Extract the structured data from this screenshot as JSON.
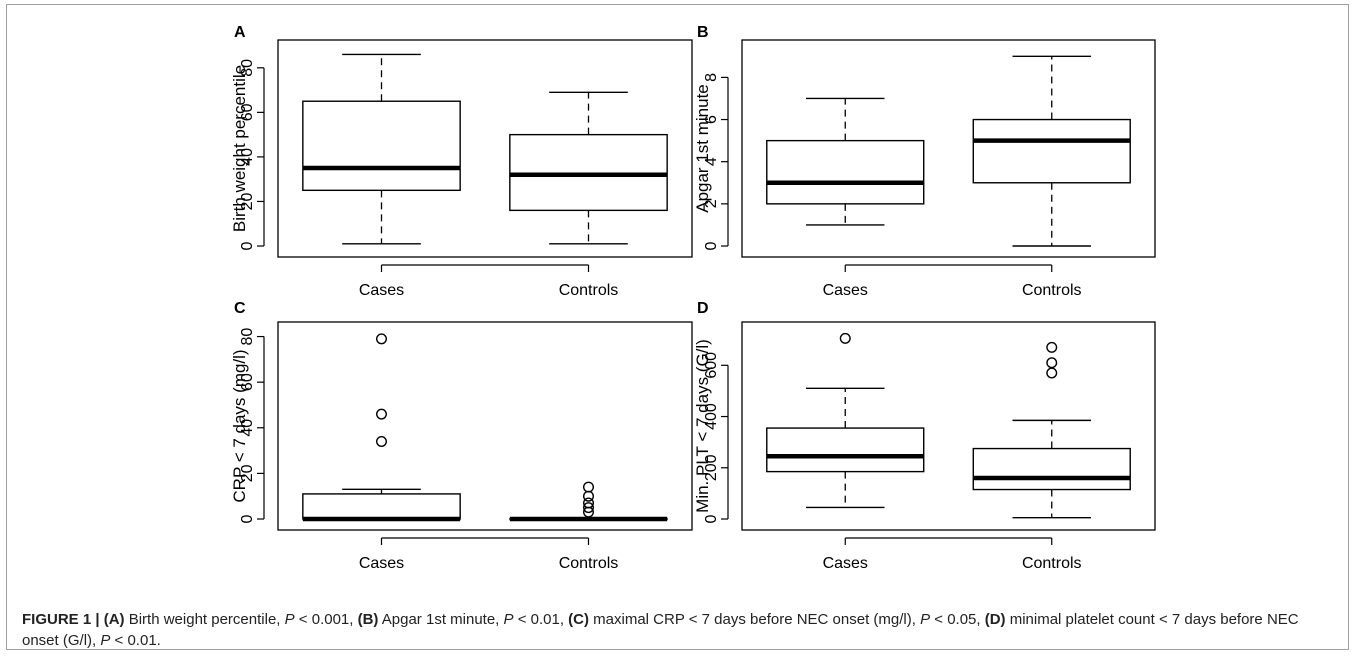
{
  "chart_data": [
    {
      "panel": "A",
      "type": "box",
      "ylabel": "Birth weight percentile",
      "categories": [
        "Cases",
        "Controls"
      ],
      "ylim": [
        0,
        88
      ],
      "yticks": [
        0,
        20,
        40,
        60,
        80
      ],
      "boxes": [
        {
          "name": "Cases",
          "whisker_low": 1,
          "q1": 25,
          "median": 35,
          "q3": 65,
          "whisker_high": 86,
          "outliers": []
        },
        {
          "name": "Controls",
          "whisker_low": 1,
          "q1": 16,
          "median": 32,
          "q3": 50,
          "whisker_high": 69,
          "outliers": []
        }
      ]
    },
    {
      "panel": "B",
      "type": "box",
      "ylabel": "Apgar 1st minute",
      "categories": [
        "Cases",
        "Controls"
      ],
      "ylim": [
        0,
        9.3
      ],
      "yticks": [
        0,
        2,
        4,
        6,
        8
      ],
      "boxes": [
        {
          "name": "Cases",
          "whisker_low": 1,
          "q1": 2,
          "median": 3,
          "q3": 5,
          "whisker_high": 7,
          "outliers": []
        },
        {
          "name": "Controls",
          "whisker_low": 0,
          "q1": 3,
          "median": 5,
          "q3": 6,
          "whisker_high": 9,
          "outliers": []
        }
      ]
    },
    {
      "panel": "C",
      "type": "box",
      "ylabel": "CRP < 7 days (mg/l)",
      "categories": [
        "Cases",
        "Controls"
      ],
      "ylim": [
        0,
        82
      ],
      "yticks": [
        0,
        20,
        40,
        60,
        80
      ],
      "boxes": [
        {
          "name": "Cases",
          "whisker_low": 0,
          "q1": 0,
          "median": 0,
          "q3": 11,
          "whisker_high": 13,
          "outliers": [
            34,
            46,
            79
          ]
        },
        {
          "name": "Controls",
          "whisker_low": 0,
          "q1": 0,
          "median": 0,
          "q3": 0,
          "whisker_high": 0,
          "outliers": [
            3,
            5,
            7,
            10,
            14
          ]
        }
      ]
    },
    {
      "panel": "D",
      "type": "box",
      "ylabel": "Min. PLT < 7 days (G/l)",
      "categories": [
        "Cases",
        "Controls"
      ],
      "ylim": [
        0,
        730
      ],
      "yticks": [
        0,
        200,
        400,
        600
      ],
      "boxes": [
        {
          "name": "Cases",
          "whisker_low": 45,
          "q1": 185,
          "median": 245,
          "q3": 355,
          "whisker_high": 510,
          "outliers": [
            705
          ]
        },
        {
          "name": "Controls",
          "whisker_low": 5,
          "q1": 115,
          "median": 160,
          "q3": 275,
          "whisker_high": 385,
          "outliers": [
            570,
            610,
            670
          ]
        }
      ]
    }
  ],
  "caption": {
    "parts": [
      {
        "text": "FIGURE 1 | ",
        "b": true
      },
      {
        "text": "(A)",
        "b": true
      },
      {
        "text": " Birth weight percentile, "
      },
      {
        "text": "P",
        "i": true
      },
      {
        "text": " < 0.001, "
      },
      {
        "text": "(B)",
        "b": true
      },
      {
        "text": " Apgar 1st minute, "
      },
      {
        "text": "P",
        "i": true
      },
      {
        "text": " < 0.01, "
      },
      {
        "text": "(C)",
        "b": true
      },
      {
        "text": " maximal CRP < 7 days before NEC onset (mg/l), "
      },
      {
        "text": "P",
        "i": true
      },
      {
        "text": " < 0.05, "
      },
      {
        "text": "(D)",
        "b": true
      },
      {
        "text": " minimal platelet count < 7 days before NEC onset (G/l), "
      },
      {
        "text": "P",
        "i": true
      },
      {
        "text": " < 0.01."
      }
    ]
  }
}
